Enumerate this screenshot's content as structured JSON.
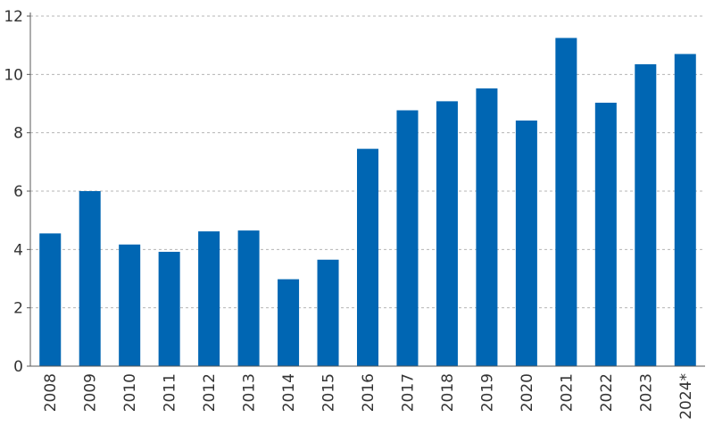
{
  "colors": {
    "bar": "#0066b3",
    "grid": "#b5b5b5",
    "axis": "#5a5a5a",
    "text": "#333333"
  },
  "chart_data": {
    "type": "bar",
    "title": "",
    "xlabel": "",
    "ylabel": "",
    "categories": [
      "2008",
      "2009",
      "2010",
      "2011",
      "2012",
      "2013",
      "2014",
      "2015",
      "2016",
      "2017",
      "2018",
      "2019",
      "2020",
      "2021",
      "2022",
      "2023",
      "2024*"
    ],
    "values": [
      4.55,
      6.0,
      4.17,
      3.92,
      4.62,
      4.65,
      2.98,
      3.65,
      7.45,
      8.77,
      9.08,
      9.52,
      8.42,
      11.25,
      9.03,
      10.35,
      10.7
    ],
    "ylim": [
      0,
      12
    ],
    "yticks": [
      0,
      2,
      4,
      6,
      8,
      10,
      12
    ],
    "grid": true,
    "legend": "none"
  }
}
